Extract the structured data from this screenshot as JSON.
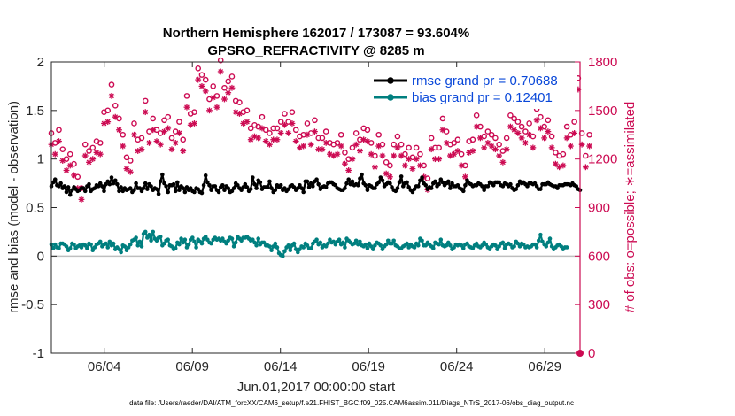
{
  "chart_data": {
    "type": "line",
    "title": "Northern Hemisphere 162017 / 173087 = 93.604%",
    "subtitle": "GPSRO_REFRACTIVITY @ 8285 m",
    "xlabel": "Jun.01,2017 00:00:00 start",
    "ylabel": "rmse and bias (model - observation)",
    "y2label": "# of obs: o=possible; ∗=assimilated",
    "footer": "data file: /Users/raeder/DAI/ATM_forcXX/CAM6_setup/f.e21.FHIST_BGC.f09_025.CAM6assim.011/Diags_NTrS_2017-06/obs_diag_output.nc",
    "x_ticks": [
      "06/04",
      "06/09",
      "06/14",
      "06/19",
      "06/24",
      "06/29"
    ],
    "x_tick_days": [
      4,
      9,
      14,
      19,
      24,
      29
    ],
    "xlim_days": [
      1,
      31
    ],
    "ylim": [
      -1,
      2
    ],
    "y_ticks": [
      "-1",
      "-0.5",
      "0",
      "0.5",
      "1",
      "1.5",
      "2"
    ],
    "y2lim": [
      0,
      1800
    ],
    "y2_ticks": [
      "0",
      "300",
      "600",
      "900",
      "1200",
      "1500",
      "1800"
    ],
    "grid": false,
    "legend_placement": "top-right",
    "series": [
      {
        "name": "rmse grand pr = 0.70688",
        "axis": "left",
        "color": "#000000",
        "marker": "filled-circle",
        "values": [
          0.72,
          0.76,
          0.79,
          0.73,
          0.72,
          0.75,
          0.7,
          0.72,
          0.66,
          0.71,
          0.63,
          0.68,
          0.71,
          0.69,
          0.67,
          0.68,
          0.7,
          0.7,
          0.67,
          0.72,
          0.74,
          0.67,
          0.69,
          0.7,
          0.73,
          0.72,
          0.75,
          0.72,
          0.67,
          0.74,
          0.77,
          0.74,
          0.81,
          0.75,
          0.78,
          0.74,
          0.67,
          0.71,
          0.67,
          0.7,
          0.68,
          0.69,
          0.7,
          0.66,
          0.68,
          0.75,
          0.7,
          0.7,
          0.67,
          0.7,
          0.75,
          0.69,
          0.74,
          0.72,
          0.68,
          0.7,
          0.69,
          0.64,
          0.77,
          0.84,
          0.75,
          0.72,
          0.66,
          0.73,
          0.73,
          0.74,
          0.67,
          0.76,
          0.68,
          0.72,
          0.7,
          0.66,
          0.71,
          0.68,
          0.7,
          0.67,
          0.66,
          0.7,
          0.69,
          0.66,
          0.65,
          0.73,
          0.83,
          0.76,
          0.73,
          0.68,
          0.72,
          0.72,
          0.68,
          0.66,
          0.71,
          0.73,
          0.68,
          0.72,
          0.7,
          0.66,
          0.67,
          0.7,
          0.75,
          0.73,
          0.7,
          0.68,
          0.71,
          0.74,
          0.71,
          0.67,
          0.69,
          0.81,
          0.74,
          0.7,
          0.78,
          0.76,
          0.69,
          0.71,
          0.71,
          0.71,
          0.77,
          0.7,
          0.66,
          0.68,
          0.73,
          0.71,
          0.73,
          0.68,
          0.7,
          0.67,
          0.69,
          0.72,
          0.73,
          0.71,
          0.68,
          0.7,
          0.73,
          0.7,
          0.66,
          0.77,
          0.77,
          0.71,
          0.75,
          0.72,
          0.77,
          0.79,
          0.74,
          0.69,
          0.71,
          0.72,
          0.71,
          0.75,
          0.76,
          0.76,
          0.74,
          0.73,
          0.7,
          0.69,
          0.68,
          0.68,
          0.7,
          0.75,
          0.79,
          0.74,
          0.77,
          0.73,
          0.74,
          0.73,
          0.8,
          0.84,
          0.75,
          0.73,
          0.68,
          0.73,
          0.72,
          0.7,
          0.7,
          0.74,
          0.76,
          0.81,
          0.78,
          0.72,
          0.74,
          0.76,
          0.75,
          0.71,
          0.68,
          0.67,
          0.7,
          0.76,
          0.82,
          0.72,
          0.75,
          0.76,
          0.71,
          0.68,
          0.66,
          0.69,
          0.72,
          0.72,
          0.78,
          0.81,
          0.75,
          0.73,
          0.69,
          0.71,
          0.7,
          0.75,
          0.77,
          0.72,
          0.74,
          0.79,
          0.76,
          0.73,
          0.75,
          0.77,
          0.7,
          0.75,
          0.72,
          0.72,
          0.73,
          0.7,
          0.69,
          0.67,
          0.73,
          0.78,
          0.75,
          0.74,
          0.72,
          0.73,
          0.73,
          0.75,
          0.74,
          0.72,
          0.68,
          0.72,
          0.72,
          0.76,
          0.75,
          0.73,
          0.76,
          0.76,
          0.76,
          0.73,
          0.72,
          0.75,
          0.74,
          0.72,
          0.74,
          0.7,
          0.68,
          0.69,
          0.73,
          0.77,
          0.75,
          0.76,
          0.74,
          0.72,
          0.75,
          0.75,
          0.74,
          0.75,
          0.72,
          0.69,
          0.69,
          0.74,
          0.74,
          0.74,
          0.76,
          0.74,
          0.73,
          0.72,
          0.72,
          0.7,
          0.73,
          0.73,
          0.73,
          0.74,
          0.74,
          0.74,
          0.73,
          0.75,
          0.73,
          0.72,
          0.69,
          0.68
        ]
      },
      {
        "name": "bias grand pr = 0.12401",
        "axis": "left",
        "color": "#007f7f",
        "marker": "filled-circle",
        "values": [
          0.12,
          0.08,
          0.12,
          0.09,
          0.08,
          0.13,
          0.13,
          0.12,
          0.1,
          0.06,
          0.08,
          0.13,
          0.12,
          0.08,
          0.1,
          0.11,
          0.09,
          0.12,
          0.11,
          0.08,
          0.13,
          0.12,
          0.06,
          0.09,
          0.12,
          0.13,
          0.15,
          0.1,
          0.12,
          0.13,
          0.09,
          0.15,
          0.11,
          0.13,
          0.07,
          0.09,
          0.07,
          0.04,
          0.11,
          0.1,
          0.06,
          0.09,
          0.12,
          0.16,
          0.17,
          0.19,
          0.11,
          0.15,
          0.1,
          0.23,
          0.25,
          0.19,
          0.22,
          0.16,
          0.25,
          0.18,
          0.16,
          0.19,
          0.2,
          0.11,
          0.13,
          0.16,
          0.17,
          0.11,
          0.1,
          0.07,
          0.08,
          0.14,
          0.12,
          0.18,
          0.14,
          0.17,
          0.09,
          0.12,
          0.17,
          0.19,
          0.15,
          0.09,
          0.17,
          0.15,
          0.13,
          0.18,
          0.2,
          0.17,
          0.14,
          0.13,
          0.17,
          0.19,
          0.17,
          0.18,
          0.16,
          0.18,
          0.15,
          0.13,
          0.16,
          0.19,
          0.18,
          0.1,
          0.14,
          0.2,
          0.18,
          0.16,
          0.19,
          0.19,
          0.2,
          0.18,
          0.16,
          0.17,
          0.14,
          0.11,
          0.18,
          0.12,
          0.14,
          0.14,
          0.11,
          0.11,
          0.1,
          0.06,
          0.1,
          0.13,
          0.09,
          0.03,
          0.01,
          0.0,
          0.05,
          0.09,
          0.11,
          0.06,
          0.11,
          0.13,
          0.07,
          0.04,
          0.07,
          0.1,
          0.09,
          0.13,
          0.11,
          0.08,
          0.08,
          0.13,
          0.15,
          0.17,
          0.12,
          0.14,
          0.09,
          0.11,
          0.1,
          0.13,
          0.17,
          0.14,
          0.15,
          0.12,
          0.15,
          0.17,
          0.12,
          0.14,
          0.09,
          0.18,
          0.16,
          0.14,
          0.12,
          0.13,
          0.16,
          0.12,
          0.15,
          0.11,
          0.1,
          0.12,
          0.08,
          0.13,
          0.1,
          0.07,
          0.11,
          0.14,
          0.13,
          0.11,
          0.07,
          0.1,
          0.12,
          0.16,
          0.13,
          0.13,
          0.16,
          0.11,
          0.1,
          0.08,
          0.08,
          0.1,
          0.11,
          0.13,
          0.09,
          0.12,
          0.1,
          0.09,
          0.13,
          0.11,
          0.18,
          0.16,
          0.11,
          0.11,
          0.14,
          0.12,
          0.1,
          0.08,
          0.14,
          0.13,
          0.12,
          0.17,
          0.11,
          0.1,
          0.11,
          0.14,
          0.11,
          0.07,
          0.09,
          0.12,
          0.11,
          0.12,
          0.11,
          0.08,
          0.12,
          0.13,
          0.1,
          0.09,
          0.08,
          0.11,
          0.13,
          0.1,
          0.09,
          0.11,
          0.14,
          0.12,
          0.09,
          0.07,
          0.1,
          0.12,
          0.11,
          0.07,
          0.1,
          0.13,
          0.14,
          0.08,
          0.12,
          0.13,
          0.12,
          0.09,
          0.1,
          0.15,
          0.13,
          0.1,
          0.13,
          0.12,
          0.09,
          0.1,
          0.09,
          0.1,
          0.12,
          0.12,
          0.09,
          0.16,
          0.22,
          0.15,
          0.12,
          0.1,
          0.14,
          0.18,
          0.1,
          0.07,
          0.09,
          0.11,
          0.12,
          0.1,
          0.07,
          0.09,
          0.09
        ]
      },
      {
        "name": "possible",
        "axis": "right",
        "color": "#cc0a52",
        "marker": "open-circle",
        "values": [
          1360,
          1340,
          1300,
          1450,
          1380,
          1330,
          1260,
          1250,
          1200,
          1160,
          1230,
          1200,
          1170,
          1100,
          1090,
          1050,
          1020,
          1080,
          1290,
          1260,
          1250,
          1310,
          1270,
          1250,
          1310,
          1280,
          1300,
          1330,
          1490,
          1460,
          1500,
          1490,
          1660,
          1480,
          1530,
          1510,
          1450,
          1390,
          1350,
          1290,
          1210,
          1180,
          1190,
          1400,
          1420,
          1340,
          1320,
          1350,
          1330,
          1530,
          1560,
          1380,
          1370,
          1380,
          1450,
          1410,
          1380,
          1350,
          1360,
          1500,
          1440,
          1510,
          1460,
          1440,
          1330,
          1440,
          1370,
          1330,
          1430,
          1290,
          1320,
          1550,
          1590,
          1570,
          1480,
          1430,
          1490,
          1730,
          1760,
          1780,
          1720,
          1640,
          1690,
          1630,
          1570,
          1700,
          1650,
          1630,
          1590,
          1620,
          1810,
          1680,
          1640,
          1640,
          1680,
          1720,
          1710,
          1560,
          1560,
          1610,
          1550,
          1440,
          1490,
          1510,
          1500,
          1470,
          1390,
          1380,
          1410,
          1480,
          1400,
          1360,
          1460,
          1420,
          1380,
          1350,
          1360,
          1470,
          1390,
          1370,
          1390,
          1500,
          1430,
          1490,
          1480,
          1420,
          1430,
          1420,
          1490,
          1420,
          1380,
          1440,
          1340,
          1320,
          1350,
          1440,
          1420,
          1350,
          1360,
          1480,
          1440,
          1420,
          1330,
          1290,
          1330,
          1320,
          1370,
          1390,
          1300,
          1290,
          1290,
          1280,
          1300,
          1310,
          1350,
          1250,
          1240,
          1170,
          1200,
          1230,
          1270,
          1330,
          1360,
          1370,
          1320,
          1380,
          1390,
          1400,
          1380,
          1350,
          1300,
          1280,
          1220,
          1330,
          1350,
          1310,
          1290,
          1230,
          1180,
          1150,
          1160,
          1200,
          1290,
          1330,
          1340,
          1260,
          1290,
          1300,
          1230,
          1250,
          1270,
          1190,
          1210,
          1210,
          1270,
          1260,
          1230,
          1170,
          1160,
          1090,
          1080,
          1270,
          1330,
          1300,
          1270,
          1330,
          1270,
          1500,
          1450,
          1390,
          1370,
          1300,
          1290,
          1250,
          1300,
          1370,
          1320,
          1290,
          1230,
          1200,
          1160,
          1240,
          1310,
          1290,
          1320,
          1390,
          1470,
          1440,
          1400,
          1380,
          1340,
          1350,
          1370,
          1470,
          1350,
          1400,
          1330,
          1300,
          1290,
          1260,
          1250,
          1280,
          1330,
          1450,
          1470,
          1440,
          1450,
          1380,
          1430,
          1420,
          1400,
          1420,
          1370,
          1340,
          1420,
          1320,
          1340,
          1490,
          1510,
          1410,
          1460,
          1340,
          1400,
          1300,
          1440,
          1470,
          1340,
          1330,
          1240,
          1230,
          1220,
          1170,
          1230,
          1270,
          1400,
          1440,
          1350,
          1360,
          1430,
          1520,
          1700,
          1400,
          1360,
          1260,
          1220,
          1340,
          1350
        ]
      },
      {
        "name": "assimilated",
        "axis": "right",
        "color": "#cc0a52",
        "marker": "asterisk",
        "values": [
          1290,
          1270,
          1230,
          1380,
          1310,
          1260,
          1190,
          1180,
          1130,
          1090,
          1160,
          1130,
          1100,
          1030,
          1020,
          980,
          950,
          1010,
          1220,
          1190,
          1180,
          1240,
          1200,
          1180,
          1240,
          1210,
          1230,
          1260,
          1420,
          1390,
          1430,
          1420,
          1590,
          1410,
          1460,
          1440,
          1380,
          1320,
          1280,
          1220,
          1140,
          1110,
          1120,
          1330,
          1350,
          1270,
          1250,
          1280,
          1260,
          1460,
          1490,
          1310,
          1300,
          1310,
          1380,
          1340,
          1310,
          1280,
          1290,
          1430,
          1370,
          1440,
          1390,
          1370,
          1260,
          1370,
          1300,
          1260,
          1360,
          1220,
          1250,
          1480,
          1520,
          1500,
          1410,
          1360,
          1420,
          1660,
          1690,
          1710,
          1650,
          1570,
          1620,
          1560,
          1500,
          1630,
          1580,
          1560,
          1520,
          1550,
          1740,
          1610,
          1570,
          1570,
          1610,
          1650,
          1640,
          1490,
          1490,
          1540,
          1480,
          1370,
          1420,
          1440,
          1430,
          1400,
          1320,
          1310,
          1340,
          1410,
          1330,
          1290,
          1390,
          1350,
          1310,
          1280,
          1290,
          1400,
          1320,
          1300,
          1320,
          1430,
          1360,
          1420,
          1410,
          1350,
          1360,
          1350,
          1420,
          1350,
          1310,
          1370,
          1270,
          1250,
          1280,
          1370,
          1350,
          1280,
          1290,
          1410,
          1370,
          1350,
          1260,
          1220,
          1260,
          1250,
          1300,
          1320,
          1230,
          1220,
          1220,
          1210,
          1230,
          1240,
          1280,
          1180,
          1170,
          1100,
          1130,
          1160,
          1200,
          1260,
          1290,
          1300,
          1250,
          1310,
          1320,
          1330,
          1310,
          1280,
          1230,
          1210,
          1150,
          1260,
          1280,
          1240,
          1220,
          1160,
          1110,
          1080,
          1090,
          1130,
          1220,
          1260,
          1270,
          1190,
          1220,
          1230,
          1160,
          1180,
          1200,
          1120,
          1140,
          1140,
          1200,
          1190,
          1160,
          1100,
          1090,
          1020,
          1010,
          1200,
          1260,
          1230,
          1200,
          1260,
          1200,
          1430,
          1380,
          1320,
          1300,
          1230,
          1220,
          1180,
          1230,
          1300,
          1250,
          1220,
          1160,
          1130,
          1090,
          1170,
          1240,
          1220,
          1250,
          1320,
          1400,
          1370,
          1330,
          1310,
          1270,
          1280,
          1300,
          1400,
          1280,
          1330,
          1260,
          1230,
          1220,
          1190,
          1180,
          1210,
          1260,
          1380,
          1400,
          1370,
          1380,
          1310,
          1360,
          1350,
          1330,
          1350,
          1300,
          1270,
          1350,
          1250,
          1270,
          1420,
          1440,
          1340,
          1390,
          1270,
          1330,
          1230,
          1370,
          1400,
          1270,
          1260,
          1170,
          1160,
          1150,
          1100,
          1160,
          1200,
          1330,
          1370,
          1280,
          1290,
          1360,
          1450,
          1630,
          1330,
          1290,
          1190,
          1150,
          1270,
          1280
        ]
      }
    ],
    "colors": {
      "left_axis": "#262626",
      "right_axis": "#cc0a52",
      "legend_text": "#0a48d9",
      "zero_line": "#bfbfbf"
    }
  }
}
